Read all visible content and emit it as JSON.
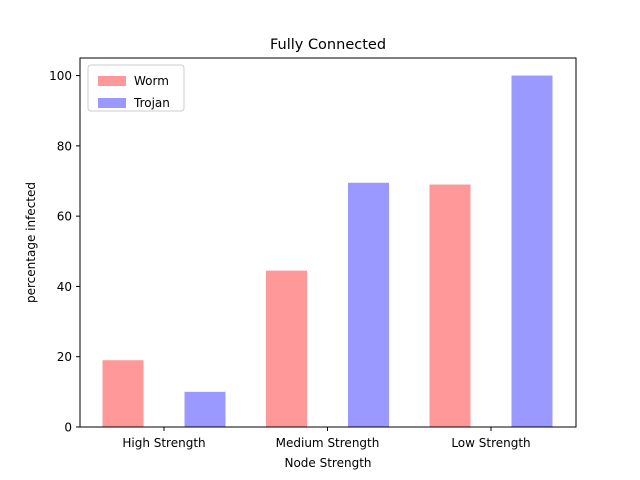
{
  "chart_data": {
    "type": "bar",
    "title": "Fully Connected",
    "xlabel": "Node Strength",
    "ylabel": "percentage infected",
    "categories": [
      "High Strength",
      "Medium Strength",
      "Low Strength"
    ],
    "series": [
      {
        "name": "Worm",
        "color": "#ff9999",
        "values": [
          19,
          44.5,
          69
        ]
      },
      {
        "name": "Trojan",
        "color": "#9999ff",
        "values": [
          10,
          69.5,
          100
        ]
      }
    ],
    "ylim": [
      0,
      105
    ],
    "yticks": [
      0,
      20,
      40,
      60,
      80,
      100
    ],
    "grid": false,
    "legend_position": "top-left"
  }
}
